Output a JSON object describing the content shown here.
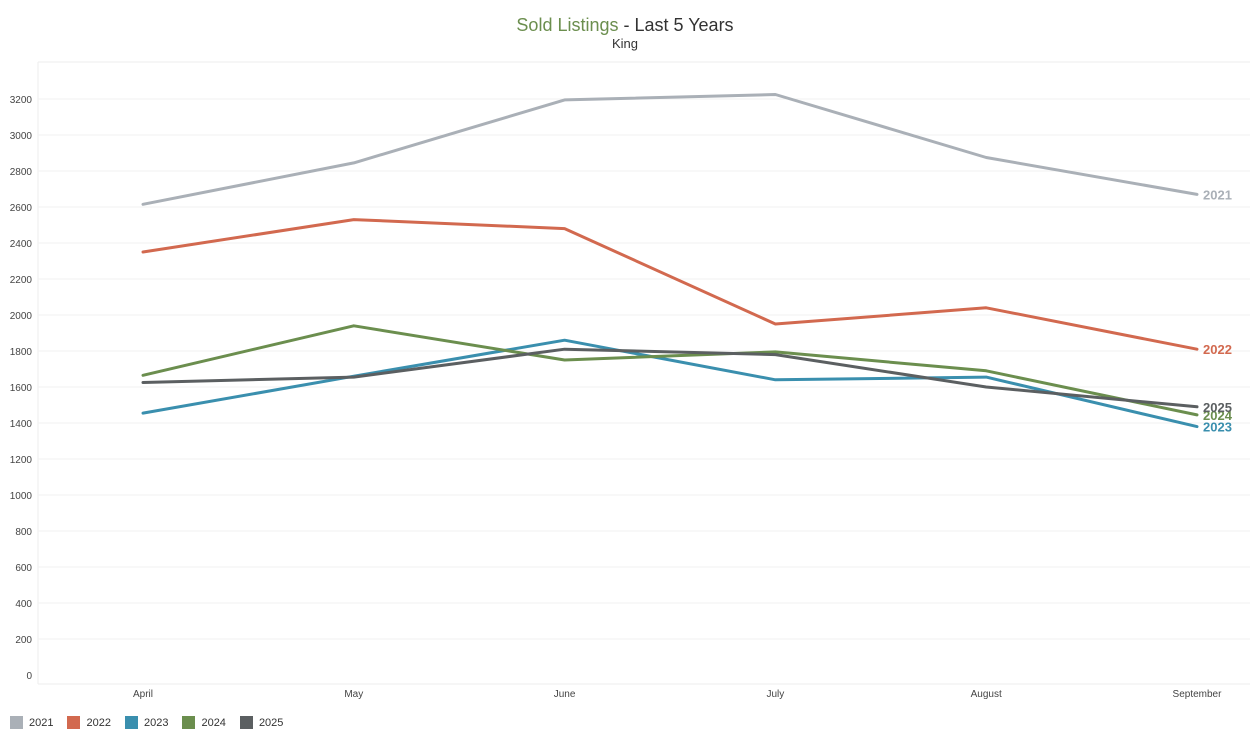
{
  "header": {
    "title_main": "Sold Listings",
    "title_rest": " - Last 5 Years",
    "subtitle": "King"
  },
  "chart_data": {
    "type": "line",
    "title": "Sold Listings - Last 5 Years",
    "subtitle": "King",
    "xlabel": "",
    "ylabel": "",
    "categories": [
      "April",
      "May",
      "June",
      "July",
      "August",
      "September"
    ],
    "ylim": [
      0,
      3300
    ],
    "yticks": [
      0,
      200,
      400,
      600,
      800,
      1000,
      1200,
      1400,
      1600,
      1800,
      2000,
      2200,
      2400,
      2600,
      2800,
      3000,
      3200
    ],
    "grid": true,
    "legend_position": "bottom-left",
    "series": [
      {
        "name": "2021",
        "color": "#aab0b7",
        "values": [
          2615,
          2845,
          3195,
          3225,
          2875,
          2670
        ]
      },
      {
        "name": "2022",
        "color": "#d2694f",
        "values": [
          2350,
          2530,
          2480,
          1950,
          2040,
          1810
        ]
      },
      {
        "name": "2023",
        "color": "#3a8fae",
        "values": [
          1455,
          1660,
          1860,
          1640,
          1655,
          1380
        ]
      },
      {
        "name": "2024",
        "color": "#6b8e4e",
        "values": [
          1665,
          1940,
          1750,
          1795,
          1690,
          1445
        ]
      },
      {
        "name": "2025",
        "color": "#5b5f61",
        "values": [
          1625,
          1655,
          1810,
          1780,
          1600,
          1490
        ]
      }
    ]
  }
}
